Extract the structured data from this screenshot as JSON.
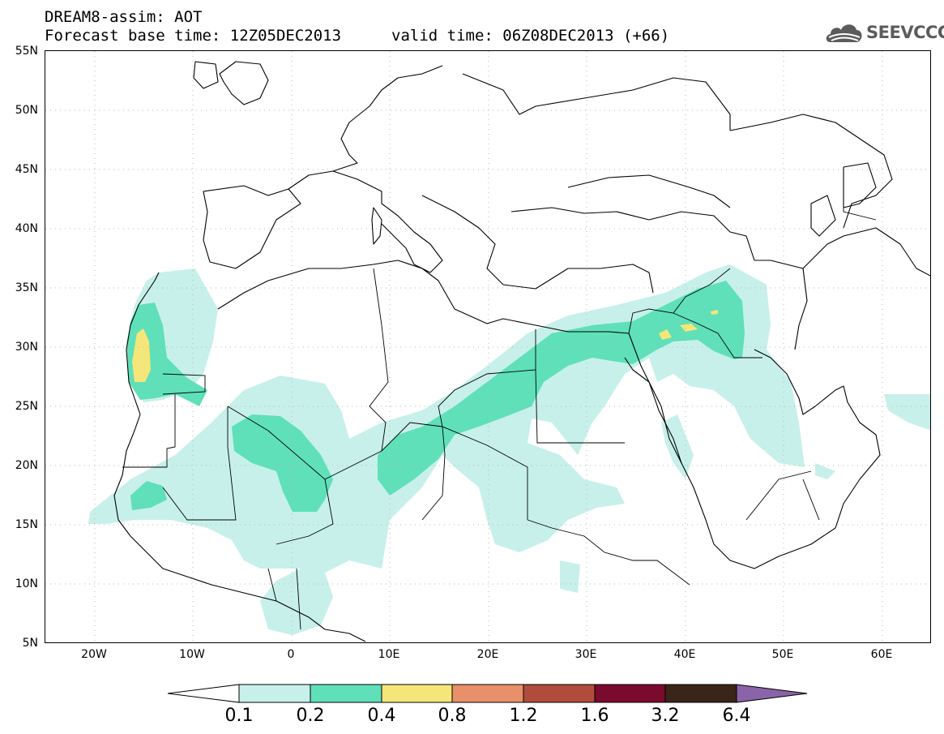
{
  "header": {
    "line1": "DREAM8-assim: AOT",
    "line2": "Forecast base time: 12Z05DEC2013",
    "line3": "valid time: 06Z08DEC2013 (+66)"
  },
  "logo": {
    "text": "SEEVCCC",
    "icon": "cloud-icon"
  },
  "map": {
    "lat_labels": [
      "55N",
      "50N",
      "45N",
      "40N",
      "35N",
      "30N",
      "25N",
      "20N",
      "15N",
      "10N",
      "5N"
    ],
    "lon_labels": [
      "20W",
      "10W",
      "0",
      "10E",
      "20E",
      "30E",
      "40E",
      "50E",
      "60E"
    ],
    "extent": {
      "lon_min": -25,
      "lon_max": 65,
      "lat_min": 5,
      "lat_max": 55
    }
  },
  "colorbar": {
    "levels": [
      "0.1",
      "0.2",
      "0.4",
      "0.8",
      "1.2",
      "1.6",
      "3.2",
      "6.4"
    ],
    "colors": [
      "#ffffff",
      "#c7f0ea",
      "#5fe0b8",
      "#f5e67a",
      "#e8906a",
      "#b04c3c",
      "#7a0a2e",
      "#3a2618",
      "#8a64a8"
    ]
  }
}
